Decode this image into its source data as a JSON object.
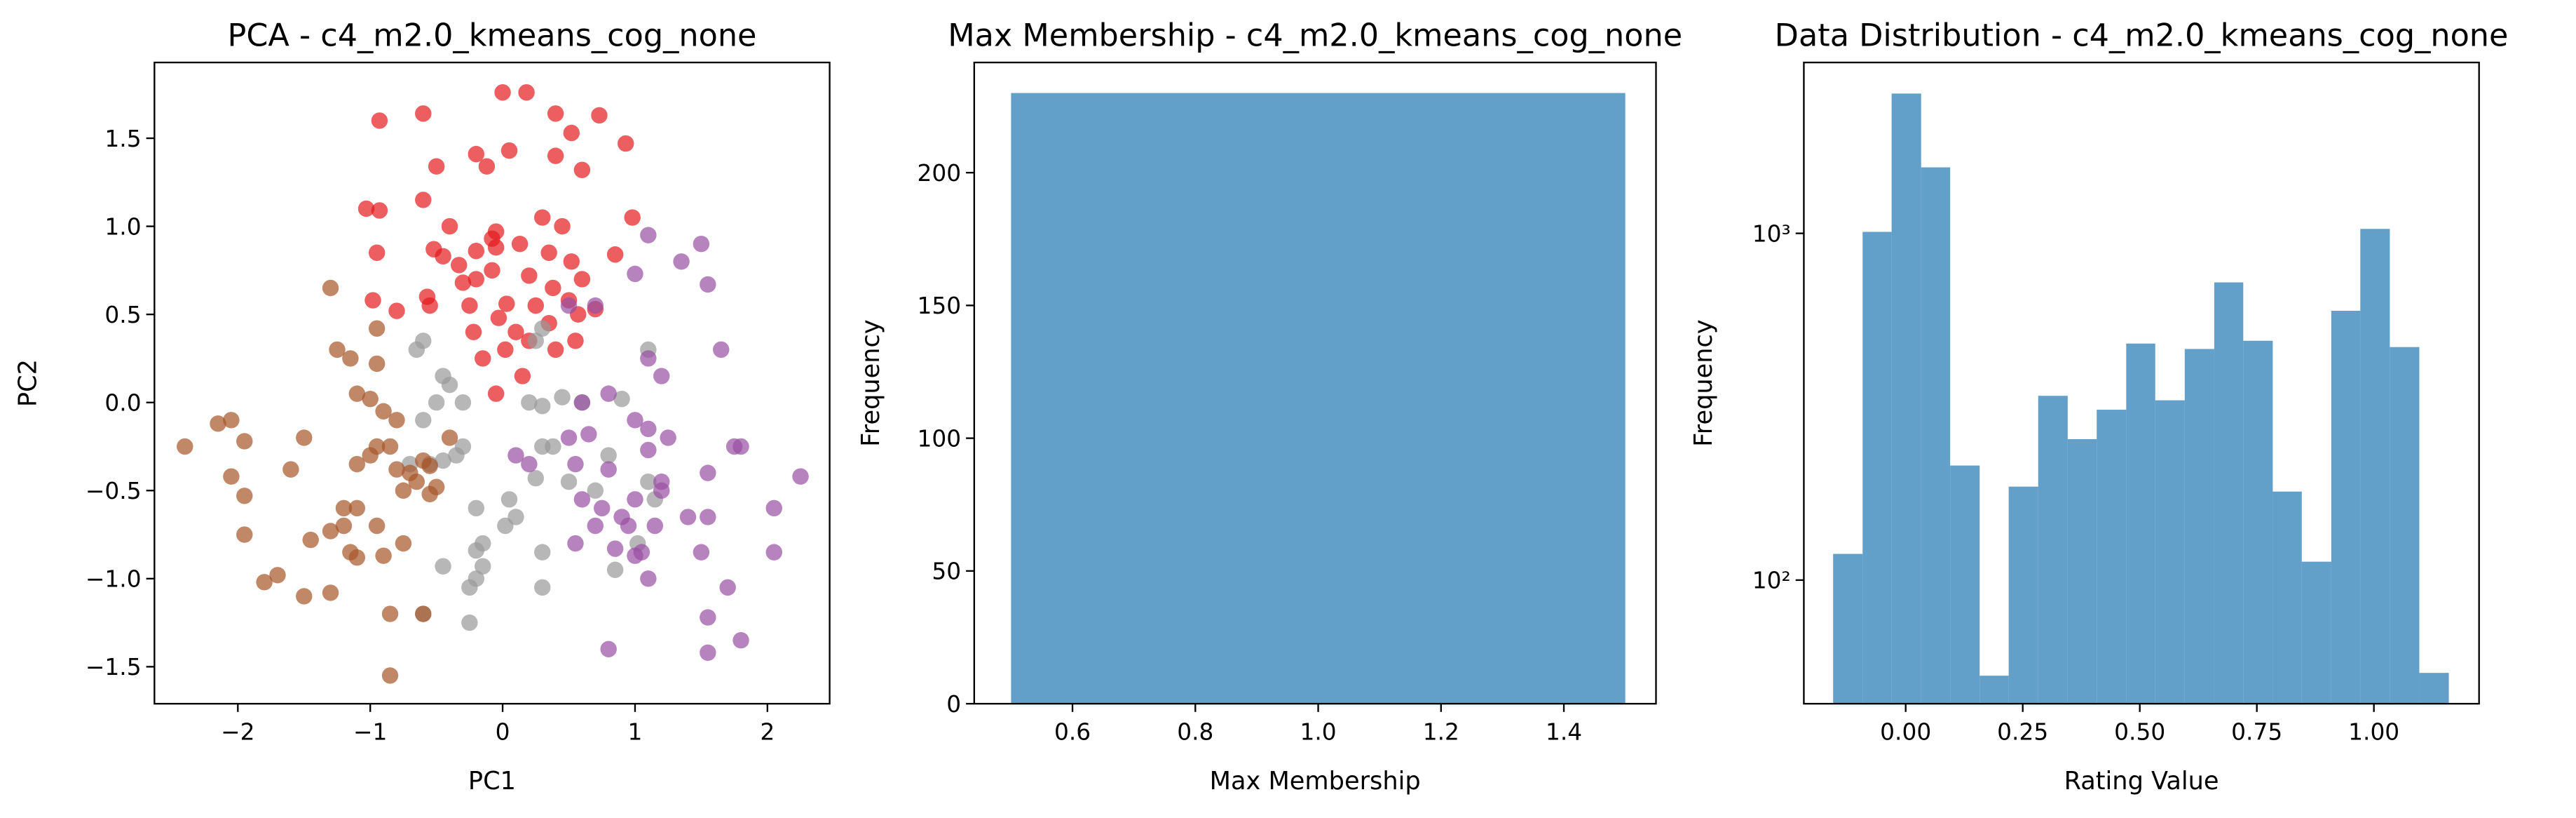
{
  "chart_data": [
    {
      "type": "scatter",
      "title": "PCA - c4_m2.0_kmeans_cog_none",
      "x_label": "PC1",
      "y_label": "PC2",
      "xlim": [
        -2.63,
        2.47
      ],
      "ylim": [
        -1.71,
        1.93
      ],
      "xticks": [
        {
          "value": -2,
          "label": "−2"
        },
        {
          "value": -1,
          "label": "−1"
        },
        0,
        1,
        2
      ],
      "yticks": [
        {
          "value": -1.5,
          "label": "−1.5"
        },
        {
          "value": -1,
          "label": "−1.0"
        },
        {
          "value": -0.5,
          "label": "−0.5"
        },
        {
          "value": 0,
          "label": "0.0"
        },
        0.5,
        {
          "value": 1,
          "label": "1.0"
        },
        1.5
      ],
      "series": [
        {
          "color": "#e41a1c",
          "x": [
            -0.93,
            -0.6,
            -0.5,
            0,
            0.18,
            0.4,
            0.52,
            0.73,
            -0.2,
            -0.12,
            0.05,
            0.4,
            0.6,
            0.93,
            -1.03,
            -0.93,
            -0.6,
            -0.4,
            -0.05,
            0.3,
            0.45,
            0.98,
            -0.95,
            -0.52,
            -0.45,
            -0.33,
            -0.2,
            -0.08,
            -0.05,
            0.13,
            0.35,
            0.52,
            0.85,
            -0.98,
            -0.8,
            -0.57,
            -0.55,
            -0.3,
            -0.2,
            -0.08,
            0.03,
            0.2,
            0.38,
            0.6,
            0.7,
            -0.22,
            -0.03,
            0.1,
            0.25,
            0.35,
            0.5,
            0.57,
            0.4,
            0.55,
            0.15,
            -0.15,
            -0.05,
            0.2,
            -0.25,
            0.02
          ],
          "values": [
            1.6,
            1.64,
            1.34,
            1.76,
            1.76,
            1.64,
            1.53,
            1.63,
            1.41,
            1.34,
            1.43,
            1.4,
            1.32,
            1.47,
            1.1,
            1.09,
            1.15,
            1.0,
            0.97,
            1.05,
            1.0,
            1.05,
            0.85,
            0.87,
            0.83,
            0.78,
            0.86,
            0.93,
            0.88,
            0.9,
            0.85,
            0.8,
            0.84,
            0.58,
            0.52,
            0.6,
            0.55,
            0.68,
            0.7,
            0.75,
            0.56,
            0.72,
            0.65,
            0.7,
            0.53,
            0.4,
            0.48,
            0.4,
            0.55,
            0.45,
            0.58,
            0.5,
            0.3,
            0.35,
            0.15,
            0.25,
            0.05,
            0.35,
            0.55,
            0.3
          ]
        },
        {
          "color": "#999999",
          "x": [
            -0.65,
            -0.6,
            0.3,
            0.25,
            -0.45,
            -0.4,
            -0.3,
            -0.5,
            -0.6,
            -0.3,
            0.2,
            0.3,
            0.45,
            0.6,
            0.9,
            0.3,
            0.38,
            -0.55,
            -0.45,
            -0.35,
            0.25,
            0.5,
            0.05,
            -0.2,
            0.1,
            -0.15,
            -0.2,
            0.02,
            -0.45,
            -0.15,
            -0.2,
            -0.25,
            0.3,
            0.3,
            -0.6,
            -0.25,
            0.85,
            1.02,
            1.1,
            1.15,
            0.8,
            1.1,
            0.7,
            -0.7
          ],
          "values": [
            0.3,
            0.35,
            0.42,
            0.35,
            0.15,
            0.1,
            0,
            0,
            -0.1,
            -0.25,
            0,
            -0.02,
            0.03,
            0,
            0.02,
            -0.25,
            -0.25,
            -0.35,
            -0.33,
            -0.3,
            -0.43,
            -0.45,
            -0.55,
            -0.6,
            -0.65,
            -0.8,
            -0.84,
            -0.7,
            -0.93,
            -0.93,
            -1,
            -1.05,
            -0.85,
            -1.05,
            -1.2,
            -1.25,
            -0.95,
            -0.8,
            -0.45,
            -0.55,
            -0.3,
            0.3,
            -0.5,
            -0.35
          ]
        },
        {
          "color": "#984ea3",
          "x": [
            1.1,
            1.5,
            1.35,
            1.55,
            1.0,
            0.5,
            0.7,
            1.65,
            1.1,
            1.2,
            0.6,
            0.8,
            0.5,
            0.65,
            1.0,
            1.1,
            1.25,
            0.2,
            0.55,
            0.8,
            1.1,
            1.2,
            1.55,
            1.75,
            1.8,
            2.25,
            0.6,
            0.75,
            1.0,
            1.2,
            0.9,
            0.7,
            0.95,
            0.55,
            0.85,
            1.15,
            1.4,
            1.55,
            1.0,
            1.05,
            1.5,
            2.05,
            2.05,
            1.1,
            1.7,
            1.55,
            1.8,
            1.55,
            0.8,
            0.1
          ],
          "values": [
            0.95,
            0.9,
            0.8,
            0.67,
            0.73,
            0.55,
            0.55,
            0.3,
            0.25,
            0.15,
            0,
            0.05,
            -0.2,
            -0.18,
            -0.1,
            -0.15,
            -0.2,
            -0.35,
            -0.35,
            -0.38,
            -0.27,
            -0.45,
            -0.4,
            -0.25,
            -0.25,
            -0.42,
            -0.55,
            -0.6,
            -0.55,
            -0.5,
            -0.65,
            -0.7,
            -0.7,
            -0.8,
            -0.83,
            -0.7,
            -0.65,
            -0.65,
            -0.87,
            -0.85,
            -0.85,
            -0.6,
            -0.85,
            -1.0,
            -1.05,
            -1.22,
            -1.35,
            -1.42,
            -1.4,
            -0.3
          ]
        },
        {
          "color": "#a65628",
          "x": [
            -2.4,
            -2.15,
            -2.05,
            -1.95,
            -2.05,
            -1.95,
            -1.6,
            -1.5,
            -1.3,
            -1.25,
            -1.15,
            -1.1,
            -0.95,
            -0.95,
            -1.0,
            -0.9,
            -0.8,
            -0.95,
            -1.0,
            -1.1,
            -0.8,
            -1.2,
            -1.1,
            -1.45,
            -1.3,
            -1.2,
            -0.95,
            -0.75,
            -0.9,
            -0.6,
            -0.55,
            -0.7,
            -0.65,
            -0.5,
            -0.55,
            -1.95,
            -1.8,
            -1.7,
            -1.5,
            -1.3,
            -1.15,
            -1.1,
            -0.85,
            -0.6,
            -0.85,
            -0.75,
            -0.4,
            -0.85
          ],
          "values": [
            -0.25,
            -0.12,
            -0.1,
            -0.22,
            -0.42,
            -0.53,
            -0.38,
            -0.2,
            0.65,
            0.3,
            0.25,
            0.05,
            0.42,
            0.22,
            0.02,
            -0.05,
            -0.1,
            -0.25,
            -0.3,
            -0.35,
            -0.38,
            -0.6,
            -0.6,
            -0.78,
            -0.73,
            -0.7,
            -0.7,
            -0.8,
            -0.87,
            -0.33,
            -0.36,
            -0.4,
            -0.45,
            -0.48,
            -0.52,
            -0.75,
            -1.02,
            -0.98,
            -1.1,
            -1.08,
            -0.85,
            -0.88,
            -1.2,
            -1.2,
            -1.55,
            -0.5,
            -0.2,
            -0.25
          ]
        }
      ]
    },
    {
      "type": "histogram",
      "title": "Max Membership - c4_m2.0_kmeans_cog_none",
      "x_label": "Max Membership",
      "y_label": "Frequency",
      "color": "#1f77b4",
      "bins": [
        0.5,
        1.5
      ],
      "values": [
        230
      ],
      "xlim": [
        0.44,
        1.55
      ],
      "ylim": [
        0,
        241.5
      ],
      "xticks": [
        0.6,
        0.8,
        {
          "value": 1,
          "label": "1.0"
        },
        1.2,
        1.4
      ],
      "yticks": [
        0,
        50,
        100,
        150,
        200
      ]
    },
    {
      "type": "histogram",
      "title": "Data Distribution - c4_m2.0_kmeans_cog_none",
      "x_label": "Rating Value",
      "y_label": "Frequency",
      "color": "#1f77b4",
      "log_y": true,
      "bins": [
        -0.155,
        -0.092,
        -0.03,
        0.033,
        0.095,
        0.158,
        0.22,
        0.283,
        0.346,
        0.408,
        0.471,
        0.533,
        0.596,
        0.659,
        0.721,
        0.784,
        0.846,
        0.909,
        0.971,
        1.034,
        1.097,
        1.16
      ],
      "values": [
        119,
        1010,
        2530,
        1550,
        214,
        53,
        186,
        340,
        255,
        310,
        481,
        330,
        464,
        722,
        490,
        180,
        113,
        598,
        1030,
        470,
        54
      ],
      "xlim": [
        -0.2175,
        1.2246
      ],
      "ylim": [
        44,
        3110
      ],
      "xticks": [
        {
          "value": 0,
          "label": "0.00"
        },
        {
          "value": 0.25,
          "label": "0.25"
        },
        {
          "value": 0.5,
          "label": "0.50"
        },
        {
          "value": 0.75,
          "label": "0.75"
        },
        {
          "value": 1,
          "label": "1.00"
        }
      ],
      "yticks": [
        {
          "value": 100,
          "label": "10²"
        },
        {
          "value": 1000,
          "label": "10³"
        }
      ]
    }
  ]
}
